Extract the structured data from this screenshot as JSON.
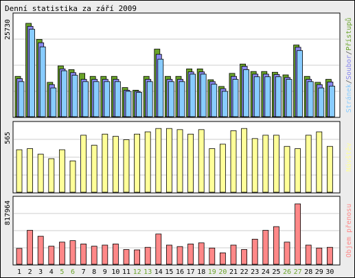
{
  "title": "Denní statistika za září 2009",
  "colors": {
    "background": "#ececec",
    "panel": "#ffffff",
    "grid": "#cccccc",
    "weekday_tick": "#000000",
    "weekend_tick": "#6aa32a",
    "pristupy": "#6aa32a",
    "soubory": "#8888ee",
    "stranky": "#88ccff",
    "navstevy": "#ffff99",
    "objem": "#ff8888"
  },
  "chart_data": [
    {
      "type": "bar",
      "panel": "top",
      "max_label": "25730",
      "right_label_parts": [
        "Stránek",
        "/",
        "Soubor",
        "/",
        "Přístupů"
      ],
      "categories": [
        "1",
        "2",
        "3",
        "4",
        "5",
        "6",
        "7",
        "8",
        "9",
        "10",
        "11",
        "12",
        "13",
        "14",
        "15",
        "16",
        "17",
        "18",
        "19",
        "20",
        "21",
        "22",
        "23",
        "24",
        "25",
        "26",
        "27",
        "28",
        "29",
        "30"
      ],
      "weekend_days": [
        "5",
        "6",
        "12",
        "13",
        "19",
        "20",
        "26",
        "27"
      ],
      "ylim": [
        0,
        25730
      ],
      "series": [
        {
          "name": "Přístupů",
          "color": "#6aa32a",
          "values": [
            10800,
            25000,
            20700,
            9200,
            13600,
            12600,
            11600,
            10800,
            10800,
            10800,
            7800,
            7100,
            10800,
            18100,
            10800,
            10800,
            12800,
            12800,
            9900,
            8100,
            11600,
            14100,
            12100,
            12100,
            11900,
            11200,
            19200,
            10800,
            9200,
            10000
          ]
        },
        {
          "name": "Soubor",
          "color": "#8888ee",
          "values": [
            10200,
            24200,
            19800,
            8600,
            12800,
            11800,
            10000,
            10000,
            10000,
            10000,
            7100,
            6800,
            10000,
            16700,
            10000,
            10000,
            12000,
            12000,
            9400,
            7500,
            10800,
            13500,
            11400,
            11400,
            11300,
            10500,
            18600,
            10000,
            8600,
            9300
          ]
        },
        {
          "name": "Stránek",
          "color": "#88ccff",
          "values": [
            9400,
            23400,
            18700,
            7700,
            12300,
            11100,
            9400,
            9400,
            9400,
            9400,
            6800,
            6500,
            9400,
            15400,
            9400,
            9400,
            11400,
            11400,
            8700,
            6800,
            10000,
            12600,
            10700,
            10700,
            10700,
            10000,
            17700,
            9400,
            7700,
            8200
          ]
        }
      ]
    },
    {
      "type": "bar",
      "panel": "middle",
      "max_label": "565",
      "right_label": "Návštěv",
      "ylim": [
        0,
        565
      ],
      "series": [
        {
          "name": "Návštěv",
          "color": "#ffff99",
          "values": [
            380,
            390,
            340,
            300,
            380,
            280,
            510,
            420,
            520,
            500,
            470,
            520,
            540,
            570,
            570,
            560,
            520,
            560,
            390,
            430,
            550,
            570,
            480,
            510,
            510,
            410,
            390,
            510,
            540,
            410
          ]
        }
      ]
    },
    {
      "type": "bar",
      "panel": "bottom",
      "max_label": "817964",
      "right_label": "Objem přenosu",
      "ylim": [
        0,
        817964
      ],
      "series": [
        {
          "name": "Objem přenosu",
          "color": "#ff8888",
          "values": [
            215000,
            460000,
            380000,
            245000,
            300000,
            320000,
            275000,
            245000,
            260000,
            275000,
            200000,
            195000,
            230000,
            410000,
            260000,
            240000,
            275000,
            290000,
            220000,
            155000,
            260000,
            200000,
            340000,
            460000,
            510000,
            300000,
            818000,
            260000,
            220000,
            230000
          ]
        }
      ]
    }
  ]
}
